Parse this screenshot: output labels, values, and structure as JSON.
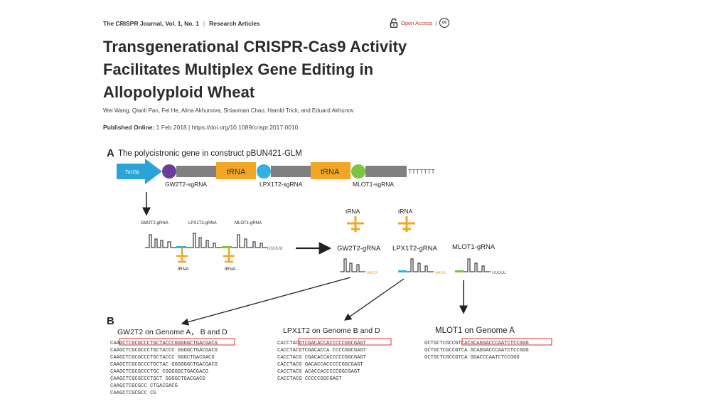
{
  "header": {
    "journal": "The CRISPR Journal, Vol. 1, No. 1",
    "separator": "|",
    "section": "Research Articles",
    "open_access": "Open Access",
    "oa_sep": "|",
    "cc_label": "cc"
  },
  "article": {
    "title_line1": "Transgenerational CRISPR-Cas9 Activity",
    "title_line2": "Facilitates Multiplex Gene Editing in",
    "title_line3": "Allopolyploid Wheat",
    "authors": "Wei Wang, Qianli Pan, Fei He, Alina Akhunova, Shiaoman Chao, Harold Trick, and Eduard Akhunov",
    "published_label": "Published Online:",
    "published_value": "1 Feb 2018 | https://doi.org/10.1089/crispr.2017.0010"
  },
  "figure": {
    "panel_a_letter": "A",
    "panel_a_title": "The polycistronic gene in construct pBUN421-GLM",
    "promoter": "TaU3p",
    "trna": "tRNA",
    "sg1": "GW2T2-sgRNA",
    "sg2": "LPX1T2-sgRNA",
    "sg3": "MLOT1-sgRNA",
    "terminator": "TTTTTTT",
    "small_g1": "GW2T2-gRNA",
    "small_g2": "LPX1T2-gRNA",
    "small_g3": "MLOT1-gRNA",
    "uuuu": "UUUUU",
    "g1": "GW2T2-gRNA",
    "g2": "LPX1T2-gRNA",
    "g3": "MLOT1-gRNA",
    "aaca": "AACA",
    "uuuuu": "UUUUU",
    "panel_b_letter": "B",
    "b1_title": "GW2T2 on Genome A， B and D",
    "b2_title": "LPX1T2 on Genome B and D",
    "b3_title": "MLOT1 on Genome A",
    "seq1": [
      "CAAGCTCGCGCCCTGCTACCCGGGGGCTGACGACG",
      "CAAGCTCGCGCCCTGCTACCC GGGGCTGACGACG",
      "CAAGCTCGCGCCCTGCTACCC  GGGCTGACGACG",
      "CAAGCTCGCGCCCTGCTAC  GGGGGGCTGACGACG",
      "CAAGCTCGCGCCCTGC     CGGGGGCTGACGACG",
      "CAAGCTCGCGCCCTGCT      GGGGCTGACGACG",
      "CAAGCTCGCGCC              CTGACGACG",
      "CAAGCTCGCGCC                     CG"
    ],
    "seq2": [
      "CACCTACGTCGACACCACCCCCGGCGAGT",
      "CACCTACGTCGACACCA CCCCGGCGAGT",
      "CACCTACG  CGACACCACCCCCGGCGAGT",
      "CACCTACG  GACACCACCCCCGGCGAGT",
      "CACCTACG     ACACCACCCCCGGCGAGT",
      "CACCTACG        CCCCCGGCGAGT"
    ],
    "seq3": [
      "GCTGCTCGCCGTCACGCAGGACCCAATCTCCGGG",
      "GCTGCTCGCCGTCA GCAGGACCCAATCTCCGGG",
      "GCTGCTCGCCGTCA     GGACCCAATCTCCGGG"
    ]
  }
}
